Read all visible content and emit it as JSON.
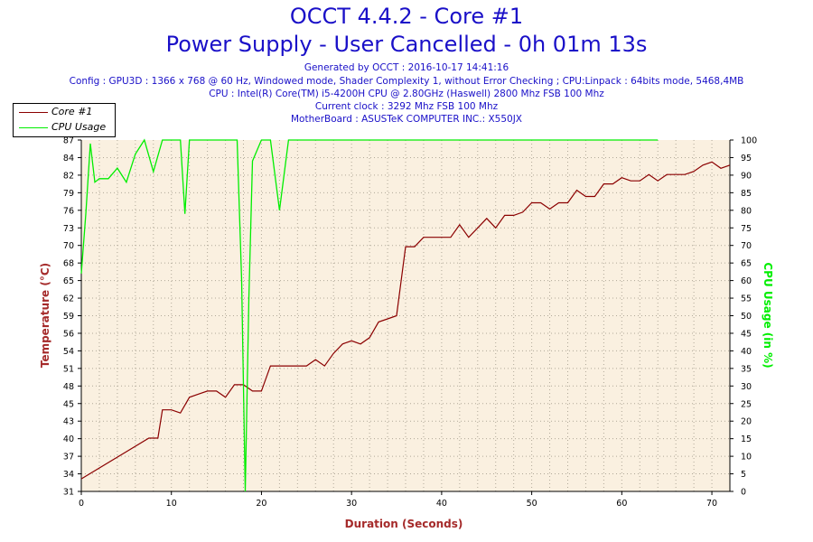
{
  "header": {
    "title": "OCCT 4.4.2 - Core #1",
    "subtitle": "Power Supply - User Cancelled - 0h 01m 13s",
    "info_lines": [
      "Generated by OCCT : 2016-10-17 14:41:16",
      "Config : GPU3D : 1366 x 768 @ 60 Hz, Windowed mode, Shader Complexity 1, without Error Checking ; CPU:Linpack : 64bits mode, 5468,4MB",
      "CPU : Intel(R) Core(TM) i5-4200H CPU @ 2.80GHz (Haswell) 2800 Mhz FSB 100 Mhz",
      "Current clock : 3292 Mhz FSB 100 Mhz",
      "MotherBoard : ASUSTeK COMPUTER INC.: X550JX"
    ]
  },
  "colors": {
    "title": "#1a10c8",
    "temperature": "#8b0000",
    "cpu": "#00ee00",
    "plot_bg": "#faf0e0",
    "axis_label": "#a52a2a"
  },
  "chart_data": {
    "type": "line",
    "xlabel": "Duration (Seconds)",
    "ylabel": "Temperature (°C)",
    "y2label": "CPU Usage (in %)",
    "xlim": [
      0,
      72
    ],
    "ylim": [
      31,
      87
    ],
    "y2lim": [
      0,
      100
    ],
    "x_ticks": [
      "0",
      "10",
      "20",
      "30",
      "40",
      "50",
      "60",
      "70"
    ],
    "y_ticks": [
      "31",
      "34",
      "37",
      "40",
      "43",
      "45",
      "48",
      "51",
      "54",
      "56",
      "59",
      "62",
      "65",
      "68",
      "70",
      "73",
      "76",
      "79",
      "82",
      "84",
      "87"
    ],
    "y2_ticks": [
      "0",
      "5",
      "10",
      "15",
      "20",
      "25",
      "30",
      "35",
      "40",
      "45",
      "50",
      "55",
      "60",
      "65",
      "70",
      "75",
      "80",
      "85",
      "90",
      "95",
      "100"
    ],
    "grid": true,
    "legend_position": "top-left",
    "series": [
      {
        "name": "Core #1",
        "axis": "left",
        "x": [
          0,
          7.5,
          8.5,
          9,
          10,
          11,
          12,
          13,
          14,
          15,
          16,
          17,
          18,
          19,
          20,
          21,
          22,
          23,
          24,
          25,
          26,
          27,
          28,
          29,
          30,
          31,
          32,
          33,
          34,
          35,
          36,
          37,
          38,
          39,
          40,
          41,
          42,
          43,
          44,
          45,
          46,
          47,
          48,
          49,
          50,
          51,
          52,
          53,
          54,
          55,
          56,
          57,
          58,
          59,
          60,
          61,
          62,
          63,
          64,
          65,
          66,
          67,
          68,
          69,
          70,
          71,
          72
        ],
        "y": [
          33,
          39.5,
          39.5,
          44,
          44,
          43.5,
          46,
          46.5,
          47,
          47,
          46,
          48,
          48,
          47,
          47,
          51,
          51,
          51,
          51,
          51,
          52,
          51,
          53,
          54.5,
          55,
          54.5,
          55.5,
          58,
          58.5,
          59,
          70,
          70,
          71.5,
          71.5,
          71.5,
          71.5,
          73.5,
          71.5,
          73,
          74.5,
          73,
          75,
          75,
          75.5,
          77,
          77,
          76,
          77,
          77,
          79,
          78,
          78,
          80,
          80,
          81,
          80.5,
          80.5,
          81.5,
          80.5,
          81.5,
          81.5,
          81.5,
          82,
          83,
          83.5,
          82.5,
          83
        ]
      },
      {
        "name": "CPU Usage",
        "axis": "right",
        "x": [
          0,
          0.5,
          1,
          1.5,
          2,
          3,
          4,
          5,
          6,
          7,
          8,
          9,
          10,
          11,
          11.5,
          12,
          13,
          14,
          15,
          16,
          17,
          17.3,
          17.8,
          18.2,
          18.6,
          19,
          20,
          21,
          22,
          23,
          24,
          25,
          30,
          40,
          50,
          60,
          64
        ],
        "y": [
          62,
          79,
          99,
          88,
          89,
          89,
          92,
          88,
          96,
          100,
          91,
          100,
          100,
          100,
          79,
          100,
          100,
          100,
          100,
          100,
          100,
          100,
          60,
          0,
          55,
          94,
          100,
          100,
          80,
          100,
          100,
          100,
          100,
          100,
          100,
          100,
          100
        ]
      }
    ]
  }
}
